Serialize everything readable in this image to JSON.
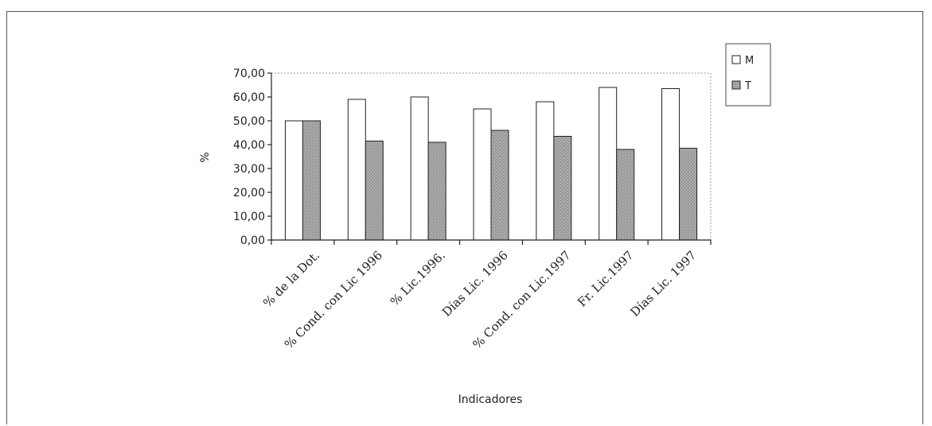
{
  "chart_data": {
    "type": "bar",
    "title": "",
    "xlabel": "Indicadores",
    "ylabel": "%",
    "ylim": [
      0,
      70
    ],
    "ytick_step": 10,
    "ytick_labels": [
      "0,00",
      "10,00",
      "20,00",
      "30,00",
      "40,00",
      "50,00",
      "60,00",
      "70,00"
    ],
    "grid": false,
    "legend_position": "top-right",
    "categories": [
      "% de la Dot.",
      "% Cond. con Lic 1996",
      "% Lic.1996.",
      "Días Lic. 1996",
      "% Cond. con Lic.1997",
      "Fr. Lic.1997",
      "Días Lic. 1997"
    ],
    "series": [
      {
        "name": "M",
        "color": "#ffffff",
        "values": [
          50,
          59,
          60,
          55,
          58,
          64,
          63.5
        ]
      },
      {
        "name": "T",
        "color": "#a8a8a8",
        "values": [
          50,
          41.5,
          41,
          46,
          43.5,
          38,
          38.5
        ]
      }
    ]
  }
}
